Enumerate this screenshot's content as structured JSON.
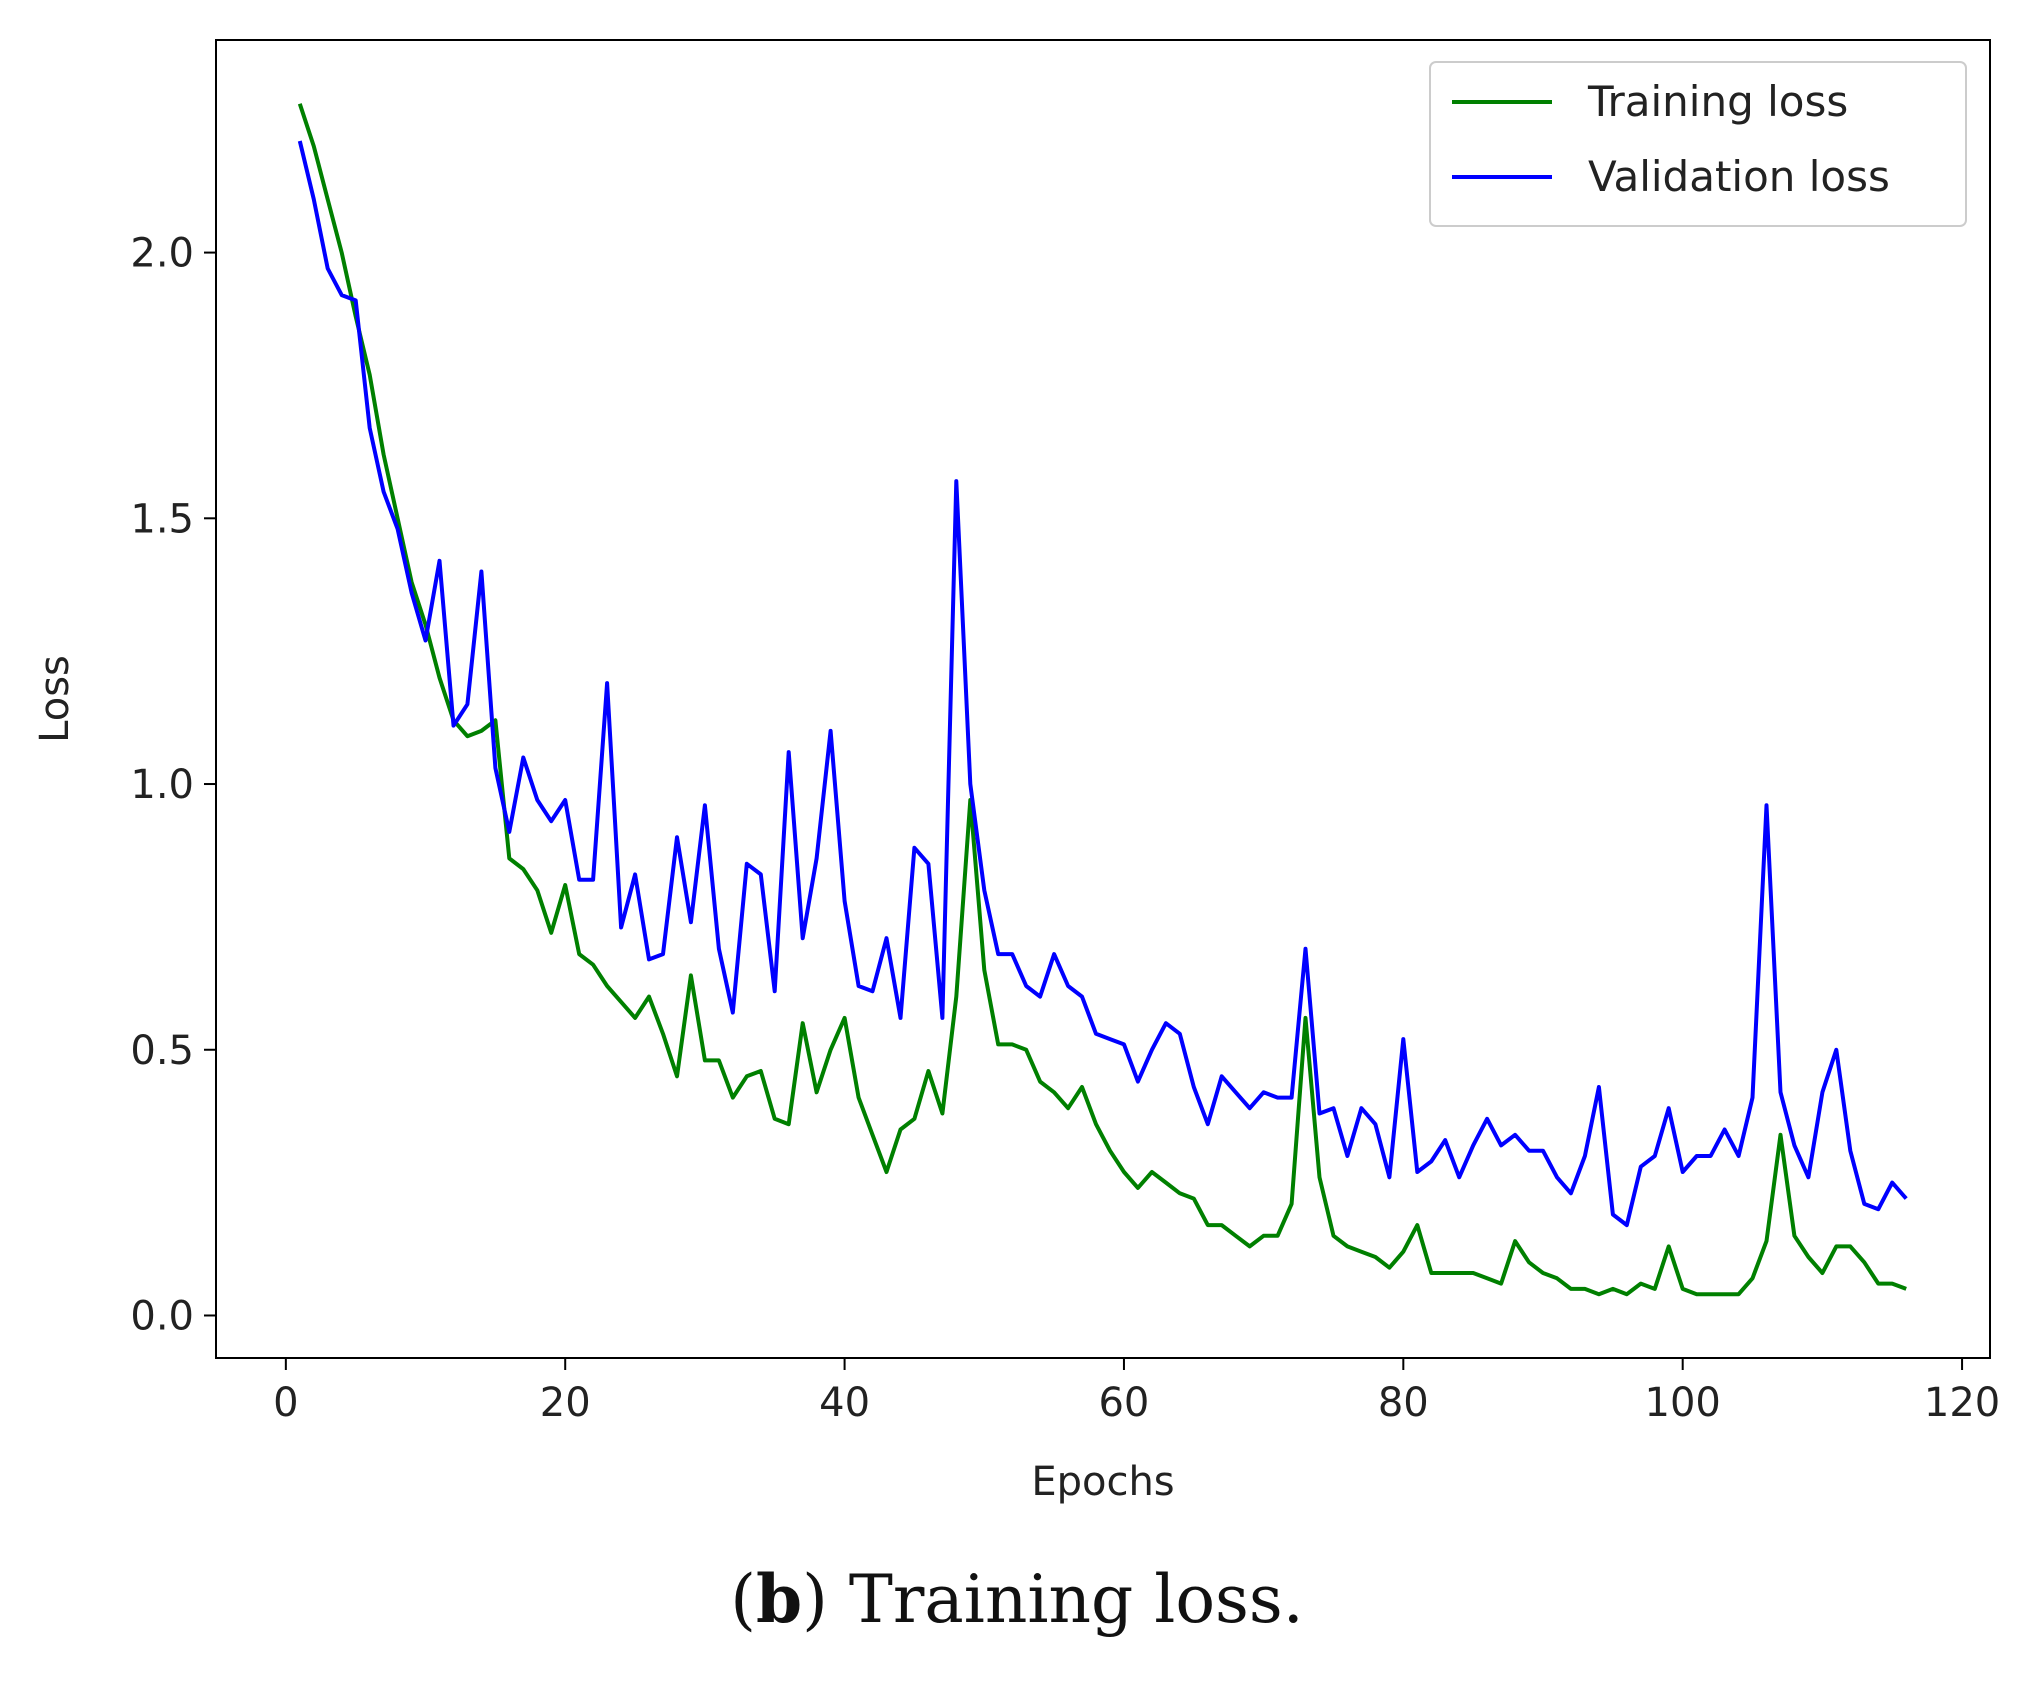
{
  "chart_data": {
    "type": "line",
    "xlabel": "Epochs",
    "ylabel": "Loss",
    "xlim": [
      -5,
      122
    ],
    "ylim": [
      -0.08,
      2.4
    ],
    "xticks": [
      0,
      20,
      40,
      60,
      80,
      100,
      120
    ],
    "yticks": [
      0.0,
      0.5,
      1.0,
      1.5,
      2.0
    ],
    "xtick_labels": [
      "0",
      "20",
      "40",
      "60",
      "80",
      "100",
      "120"
    ],
    "ytick_labels": [
      "0.0",
      "0.5",
      "1.0",
      "1.5",
      "2.0"
    ],
    "legend_position": "top-right",
    "series": [
      {
        "name": "Training loss",
        "color": "#008000",
        "x": [
          1,
          2,
          3,
          4,
          5,
          6,
          7,
          8,
          9,
          10,
          11,
          12,
          13,
          14,
          15,
          16,
          17,
          18,
          19,
          20,
          21,
          22,
          23,
          24,
          25,
          26,
          27,
          28,
          29,
          30,
          31,
          32,
          33,
          34,
          35,
          36,
          37,
          38,
          39,
          40,
          41,
          42,
          43,
          44,
          45,
          46,
          47,
          48,
          49,
          50,
          51,
          52,
          53,
          54,
          55,
          56,
          57,
          58,
          59,
          60,
          61,
          62,
          63,
          64,
          65,
          66,
          67,
          68,
          69,
          70,
          71,
          72,
          73,
          74,
          75,
          76,
          77,
          78,
          79,
          80,
          81,
          82,
          83,
          84,
          85,
          86,
          87,
          88,
          89,
          90,
          91,
          92,
          93,
          94,
          95,
          96,
          97,
          98,
          99,
          100,
          101,
          102,
          103,
          104,
          105,
          106,
          107,
          108,
          109,
          110,
          111,
          112,
          113,
          114,
          115,
          116
        ],
        "values": [
          2.28,
          2.2,
          2.1,
          2.0,
          1.88,
          1.77,
          1.62,
          1.5,
          1.38,
          1.3,
          1.2,
          1.12,
          1.09,
          1.1,
          1.12,
          0.86,
          0.84,
          0.8,
          0.72,
          0.81,
          0.68,
          0.66,
          0.62,
          0.59,
          0.56,
          0.6,
          0.53,
          0.45,
          0.64,
          0.48,
          0.48,
          0.41,
          0.45,
          0.46,
          0.37,
          0.36,
          0.55,
          0.42,
          0.5,
          0.56,
          0.41,
          0.34,
          0.27,
          0.35,
          0.37,
          0.46,
          0.38,
          0.6,
          0.97,
          0.65,
          0.51,
          0.51,
          0.5,
          0.44,
          0.42,
          0.39,
          0.43,
          0.36,
          0.31,
          0.27,
          0.24,
          0.27,
          0.25,
          0.23,
          0.22,
          0.17,
          0.17,
          0.15,
          0.13,
          0.15,
          0.15,
          0.21,
          0.56,
          0.26,
          0.15,
          0.13,
          0.12,
          0.11,
          0.09,
          0.12,
          0.17,
          0.08,
          0.08,
          0.08,
          0.08,
          0.07,
          0.06,
          0.14,
          0.1,
          0.08,
          0.07,
          0.05,
          0.05,
          0.04,
          0.05,
          0.04,
          0.06,
          0.05,
          0.13,
          0.05,
          0.04,
          0.04,
          0.04,
          0.04,
          0.07,
          0.14,
          0.34,
          0.15,
          0.11,
          0.08,
          0.13,
          0.13,
          0.1,
          0.06,
          0.06,
          0.05
        ]
      },
      {
        "name": "Validation loss",
        "color": "#0000ff",
        "x": [
          1,
          2,
          3,
          4,
          5,
          6,
          7,
          8,
          9,
          10,
          11,
          12,
          13,
          14,
          15,
          16,
          17,
          18,
          19,
          20,
          21,
          22,
          23,
          24,
          25,
          26,
          27,
          28,
          29,
          30,
          31,
          32,
          33,
          34,
          35,
          36,
          37,
          38,
          39,
          40,
          41,
          42,
          43,
          44,
          45,
          46,
          47,
          48,
          49,
          50,
          51,
          52,
          53,
          54,
          55,
          56,
          57,
          58,
          59,
          60,
          61,
          62,
          63,
          64,
          65,
          66,
          67,
          68,
          69,
          70,
          71,
          72,
          73,
          74,
          75,
          76,
          77,
          78,
          79,
          80,
          81,
          82,
          83,
          84,
          85,
          86,
          87,
          88,
          89,
          90,
          91,
          92,
          93,
          94,
          95,
          96,
          97,
          98,
          99,
          100,
          101,
          102,
          103,
          104,
          105,
          106,
          107,
          108,
          109,
          110,
          111,
          112,
          113,
          114,
          115,
          116
        ],
        "values": [
          2.21,
          2.1,
          1.97,
          1.92,
          1.91,
          1.67,
          1.55,
          1.48,
          1.36,
          1.27,
          1.42,
          1.11,
          1.15,
          1.4,
          1.03,
          0.91,
          1.05,
          0.97,
          0.93,
          0.97,
          0.82,
          0.82,
          1.19,
          0.73,
          0.83,
          0.67,
          0.68,
          0.9,
          0.74,
          0.96,
          0.69,
          0.57,
          0.85,
          0.83,
          0.61,
          1.06,
          0.71,
          0.86,
          1.1,
          0.78,
          0.62,
          0.61,
          0.71,
          0.56,
          0.88,
          0.85,
          0.56,
          1.57,
          1.0,
          0.8,
          0.68,
          0.68,
          0.62,
          0.6,
          0.68,
          0.62,
          0.6,
          0.53,
          0.52,
          0.51,
          0.44,
          0.5,
          0.55,
          0.53,
          0.43,
          0.36,
          0.45,
          0.42,
          0.39,
          0.42,
          0.41,
          0.41,
          0.69,
          0.38,
          0.39,
          0.3,
          0.39,
          0.36,
          0.26,
          0.52,
          0.27,
          0.29,
          0.33,
          0.26,
          0.32,
          0.37,
          0.32,
          0.34,
          0.31,
          0.31,
          0.26,
          0.23,
          0.3,
          0.43,
          0.19,
          0.17,
          0.28,
          0.3,
          0.39,
          0.27,
          0.3,
          0.3,
          0.35,
          0.3,
          0.41,
          0.96,
          0.42,
          0.32,
          0.26,
          0.42,
          0.5,
          0.31,
          0.21,
          0.2,
          0.25,
          0.22
        ]
      }
    ]
  },
  "caption": {
    "label": "b",
    "text": " Training loss."
  }
}
